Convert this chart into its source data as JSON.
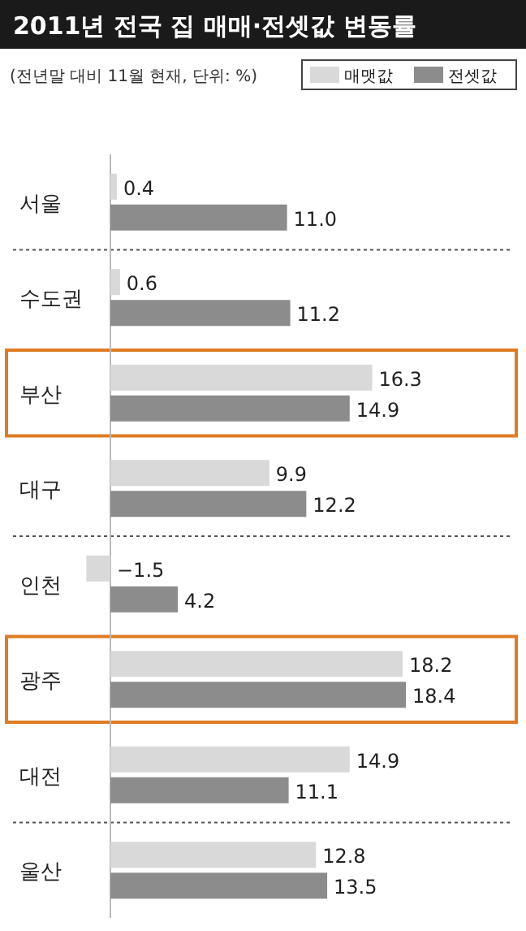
{
  "chart_data": {
    "type": "bar",
    "orientation": "horizontal",
    "title": "2011년 전국 집 매매·전셋값 변동률",
    "subtitle": "(전년말 대비 11월 현재, 단위: %)",
    "categories": [
      "서울",
      "수도권",
      "부산",
      "대구",
      "인천",
      "광주",
      "대전",
      "울산"
    ],
    "series": [
      {
        "name": "매맷값",
        "color": "#d9d9d9",
        "values": [
          0.4,
          0.6,
          16.3,
          9.9,
          -1.5,
          18.2,
          14.9,
          12.8
        ],
        "value_labels": [
          "0.4",
          "0.6",
          "16.3",
          "9.9",
          "−1.5",
          "18.2",
          "14.9",
          "12.8"
        ]
      },
      {
        "name": "전셋값",
        "color": "#8c8c8c",
        "values": [
          11.0,
          11.2,
          14.9,
          12.2,
          4.2,
          18.4,
          11.1,
          13.5
        ],
        "value_labels": [
          "11.0",
          "11.2",
          "14.9",
          "12.2",
          "4.2",
          "18.4",
          "11.1",
          "13.5"
        ]
      }
    ],
    "legend": "top right",
    "grid": "y"
  }
}
